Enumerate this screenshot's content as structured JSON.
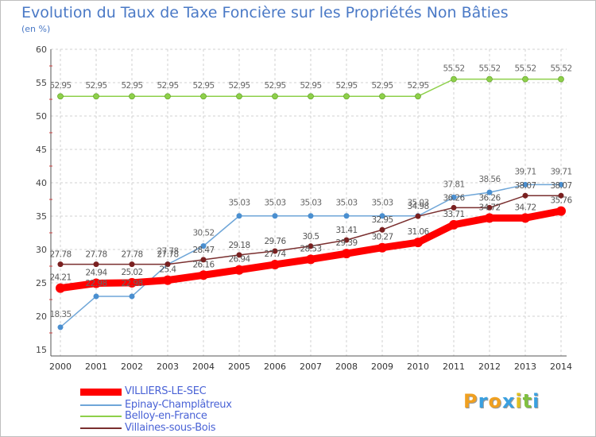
{
  "chart_data": {
    "type": "line",
    "title": "Evolution du Taux de Taxe Foncière sur les Propriétés Non Bâties",
    "ylabel": "(en %)",
    "xlabel": "",
    "ylim": [
      15,
      60
    ],
    "yticks": [
      15,
      20,
      25,
      30,
      35,
      40,
      45,
      50,
      55,
      60
    ],
    "categories": [
      "2000",
      "2001",
      "2002",
      "2003",
      "2004",
      "2005",
      "2006",
      "2007",
      "2008",
      "2009",
      "2010",
      "2011",
      "2012",
      "2013",
      "2014"
    ],
    "series": [
      {
        "name": "VILLIERS-LE-SEC",
        "color": "#ff0000",
        "values": [
          24.21,
          24.94,
          25.02,
          25.4,
          26.16,
          26.94,
          27.74,
          28.53,
          29.39,
          30.27,
          31.06,
          33.71,
          34.72,
          34.72,
          35.76
        ],
        "labels": [
          "24.21",
          "24.94",
          "25.02",
          "25.4",
          "26.16",
          "26.94",
          "27.74",
          "28.53",
          "29.39",
          "30.27",
          "31.06",
          "33.71",
          "34.72",
          "34.72",
          "35.76"
        ]
      },
      {
        "name": "Epinay-Champlâtreux",
        "color": "#6fa6d8",
        "values": [
          18.35,
          22.98,
          22.98,
          27.78,
          30.52,
          35.03,
          35.03,
          35.03,
          35.03,
          35.03,
          35.03,
          37.81,
          38.56,
          39.71,
          39.71
        ],
        "labels": [
          "18.35",
          "22.98",
          "22.98",
          "27.78",
          "30.52",
          "35.03",
          "35.03",
          "35.03",
          "35.03",
          "35.03",
          "35.03",
          "37.81",
          "38.56",
          "39.71",
          "39.71"
        ]
      },
      {
        "name": "Belloy-en-France",
        "color": "#8ed04a",
        "values": [
          52.95,
          52.95,
          52.95,
          52.95,
          52.95,
          52.95,
          52.95,
          52.95,
          52.95,
          52.95,
          52.95,
          55.52,
          55.52,
          55.52,
          55.52
        ],
        "labels": [
          "52.95",
          "52.95",
          "52.95",
          "52.95",
          "52.95",
          "52.95",
          "52.95",
          "52.95",
          "52.95",
          "52.95",
          "52.95",
          "55.52",
          "55.52",
          "55.52",
          "55.52"
        ]
      },
      {
        "name": "Villaines-sous-Bois",
        "color": "#7a2f2f",
        "values": [
          27.78,
          27.78,
          27.78,
          27.78,
          28.47,
          29.18,
          29.76,
          30.5,
          31.41,
          32.95,
          34.98,
          36.26,
          36.26,
          38.07,
          38.07
        ],
        "labels": [
          "27.78",
          "27.78",
          "27.78",
          "27.78",
          "28.47",
          "29.18",
          "29.76",
          "30.5",
          "31.41",
          "32.95",
          "34.98",
          "36.26",
          "36.26",
          "38.07",
          "38.07"
        ]
      }
    ]
  },
  "logo": {
    "letters": [
      "P",
      "r",
      "o",
      "x",
      "i",
      "t",
      "i"
    ],
    "colors": [
      "#f0a020",
      "#3aa0e0",
      "#f0a020",
      "#3aa0e0",
      "#e0c020",
      "#80c040",
      "#3aa0e0"
    ]
  }
}
